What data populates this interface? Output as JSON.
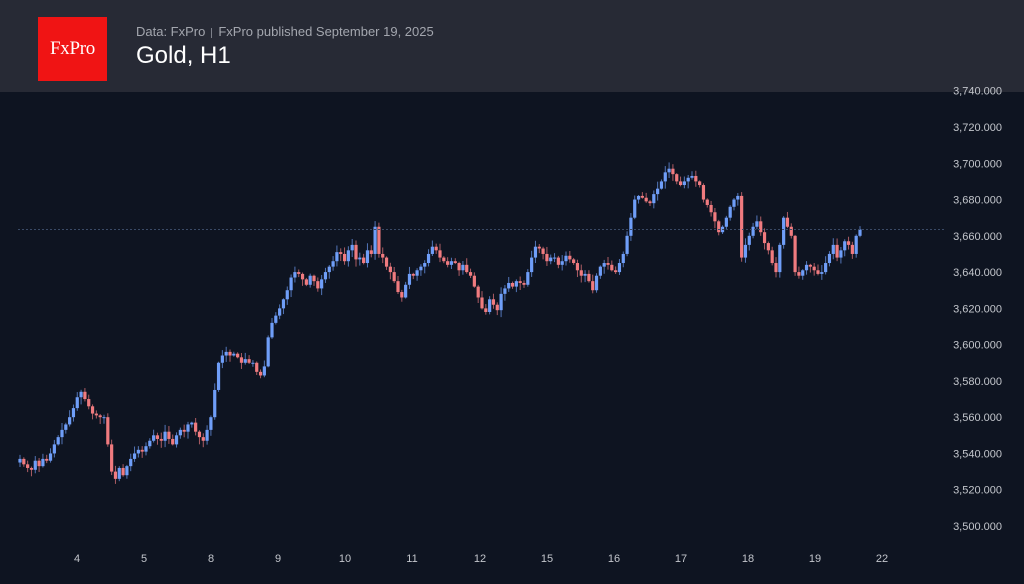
{
  "header": {
    "logo_text": "FxPro",
    "source": "Data: FxPro",
    "published": "FxPro published September 19, 2025",
    "title": "Gold, H1"
  },
  "colors": {
    "header_bg": "#272a35",
    "chart_bg": "#0e1421",
    "logo_bg": "#f01414",
    "up": "#6f9ef8",
    "down": "#f07b7f",
    "axis_text": "#c3c6cc",
    "current_line": "#3a4a66"
  },
  "chart_data": {
    "type": "candlestick",
    "title": "Gold, H1",
    "xlabel": "",
    "ylabel": "",
    "ylim": [
      3490,
      3743
    ],
    "y_ticks": [
      3500,
      3520,
      3540,
      3560,
      3580,
      3600,
      3620,
      3640,
      3660,
      3680,
      3700,
      3720,
      3740
    ],
    "y_tick_labels": [
      "3,500.000",
      "3,520.000",
      "3,540.000",
      "3,560.000",
      "3,580.000",
      "3,600.000",
      "3,620.000",
      "3,640.000",
      "3,660.000",
      "3,680.000",
      "3,700.000",
      "3,720.000",
      "3,740.000"
    ],
    "x_ticks": [
      {
        "label": "4",
        "x": 77
      },
      {
        "label": "5",
        "x": 144
      },
      {
        "label": "8",
        "x": 211
      },
      {
        "label": "9",
        "x": 278
      },
      {
        "label": "10",
        "x": 345
      },
      {
        "label": "11",
        "x": 412
      },
      {
        "label": "12",
        "x": 480
      },
      {
        "label": "15",
        "x": 547
      },
      {
        "label": "16",
        "x": 614
      },
      {
        "label": "17",
        "x": 681
      },
      {
        "label": "18",
        "x": 748
      },
      {
        "label": "19",
        "x": 815
      },
      {
        "label": "22",
        "x": 882
      }
    ],
    "current_price": 3663.5,
    "grid": false,
    "legend": "none",
    "closes": [
      3537,
      3534,
      3532,
      3531,
      3536,
      3533,
      3537,
      3536,
      3540,
      3545,
      3549,
      3553,
      3556,
      3560,
      3565,
      3571,
      3574,
      3570,
      3566,
      3562,
      3561,
      3560,
      3560,
      3545,
      3530,
      3526,
      3532,
      3528,
      3533,
      3537,
      3540,
      3542,
      3541,
      3544,
      3547,
      3550,
      3548,
      3547,
      3552,
      3548,
      3545,
      3550,
      3553,
      3552,
      3556,
      3557,
      3552,
      3549,
      3547,
      3553,
      3560,
      3575,
      3590,
      3594,
      3596,
      3594,
      3595,
      3593,
      3590,
      3592,
      3590,
      3590,
      3585,
      3583,
      3588,
      3604,
      3612,
      3616,
      3620,
      3625,
      3630,
      3637,
      3640,
      3639,
      3636,
      3633,
      3638,
      3635,
      3631,
      3636,
      3640,
      3643,
      3646,
      3651,
      3650,
      3646,
      3652,
      3655,
      3647,
      3648,
      3645,
      3652,
      3650,
      3665,
      3650,
      3648,
      3643,
      3640,
      3635,
      3629,
      3626,
      3633,
      3639,
      3638,
      3641,
      3643,
      3645,
      3650,
      3654,
      3652,
      3648,
      3646,
      3644,
      3646,
      3645,
      3641,
      3644,
      3640,
      3638,
      3632,
      3626,
      3620,
      3618,
      3625,
      3622,
      3619,
      3628,
      3631,
      3634,
      3632,
      3635,
      3634,
      3633,
      3640,
      3648,
      3654,
      3653,
      3650,
      3646,
      3648,
      3648,
      3644,
      3646,
      3649,
      3647,
      3645,
      3641,
      3638,
      3639,
      3635,
      3630,
      3638,
      3643,
      3645,
      3644,
      3641,
      3640,
      3645,
      3650,
      3660,
      3670,
      3680,
      3682,
      3681,
      3679,
      3678,
      3683,
      3686,
      3690,
      3695,
      3697,
      3694,
      3690,
      3688,
      3690,
      3692,
      3693,
      3690,
      3688,
      3680,
      3677,
      3673,
      3668,
      3662,
      3665,
      3670,
      3676,
      3680,
      3682,
      3648,
      3655,
      3660,
      3665,
      3668,
      3662,
      3656,
      3652,
      3645,
      3640,
      3655,
      3670,
      3665,
      3660,
      3640,
      3638,
      3641,
      3644,
      3643,
      3641,
      3639,
      3640,
      3645,
      3650,
      3655,
      3648,
      3652,
      3657,
      3655,
      3650,
      3660,
      3663.5
    ]
  }
}
